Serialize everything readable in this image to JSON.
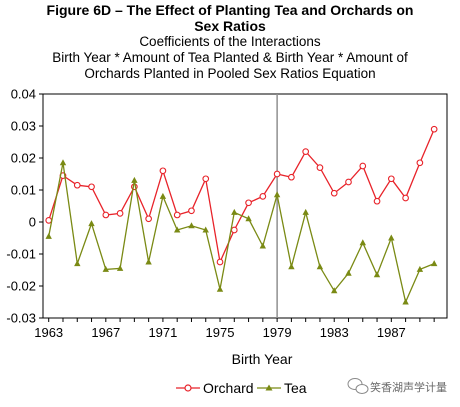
{
  "chart_data": {
    "type": "line",
    "title_lines": [
      "Figure 6D – The Effect of Planting Tea and Orchards on",
      "Sex Ratios"
    ],
    "subtitle_lines": [
      "Coefficients of the Interactions",
      "Birth Year * Amount of Tea Planted & Birth Year * Amount of",
      "Orchards Planted in Pooled Sex Ratios Equation"
    ],
    "xlabel": "Birth Year",
    "ylabel": "",
    "x": [
      1963,
      1964,
      1965,
      1966,
      1967,
      1968,
      1969,
      1970,
      1971,
      1972,
      1973,
      1974,
      1975,
      1976,
      1977,
      1978,
      1979,
      1980,
      1981,
      1982,
      1983,
      1984,
      1985,
      1986,
      1987,
      1988,
      1989,
      1990
    ],
    "xlim": [
      1962.6,
      1990.9
    ],
    "ylim": [
      -0.03,
      0.04
    ],
    "xticks": [
      "1963",
      "1967",
      "1971",
      "1975",
      "1979",
      "1983",
      "1987"
    ],
    "yticks": [
      "0.04",
      "0.03",
      "0.02",
      "0.01",
      "0",
      "-0.01",
      "-0.02",
      "-0.03"
    ],
    "vline_x": 1979,
    "legend_position": "bottom-center",
    "series": [
      {
        "name": "Orchard",
        "color": "#e8232a",
        "marker": "circle-open",
        "values": [
          0.0005,
          0.0145,
          0.0115,
          0.011,
          0.0022,
          0.0027,
          0.011,
          0.001,
          0.016,
          0.0022,
          0.0035,
          0.0135,
          -0.0125,
          -0.0025,
          0.006,
          0.008,
          0.015,
          0.014,
          0.022,
          0.017,
          0.009,
          0.0125,
          0.0175,
          0.0065,
          0.0135,
          0.0075,
          0.0185,
          0.029
        ]
      },
      {
        "name": "Tea",
        "color": "#7a8a14",
        "marker": "triangle",
        "values": [
          -0.0045,
          0.0185,
          -0.013,
          -0.0005,
          -0.0148,
          -0.0145,
          0.013,
          -0.0125,
          0.008,
          -0.0025,
          -0.0012,
          -0.0025,
          -0.021,
          0.003,
          0.001,
          -0.0075,
          0.0085,
          -0.014,
          0.003,
          -0.014,
          -0.0215,
          -0.016,
          -0.0065,
          -0.0165,
          -0.005,
          -0.025,
          -0.0148,
          -0.013
        ]
      }
    ]
  },
  "watermark": {
    "text": "笑香湖声学计量",
    "icon": "wechat-icon"
  }
}
